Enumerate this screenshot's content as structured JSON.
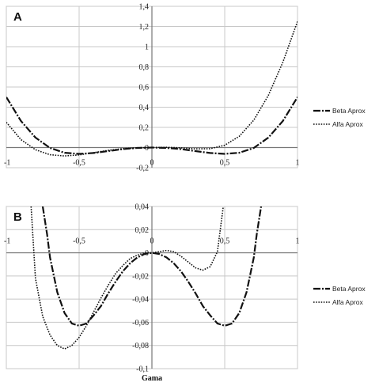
{
  "chart_data": [
    {
      "panel": "A",
      "type": "line",
      "xlim": [
        -1,
        1
      ],
      "ylim": [
        -0.2,
        1.4
      ],
      "grid": true,
      "legend_position": "right",
      "xticks": [
        "-1",
        "-0,5",
        "0",
        "0,5",
        "1"
      ],
      "yticks": [
        "-0,2",
        "0",
        "0,2",
        "0,4",
        "0,6",
        "0,8",
        "1",
        "1,2",
        "1,4"
      ],
      "series": [
        {
          "name": "Beta Aprox",
          "style": "dash-dot",
          "x": [
            -1,
            -0.9,
            -0.8,
            -0.7,
            -0.6,
            -0.5,
            -0.4,
            -0.3,
            -0.2,
            -0.1,
            0,
            0.1,
            0.2,
            0.3,
            0.4,
            0.5,
            0.6,
            0.7,
            0.8,
            0.9,
            1
          ],
          "y": [
            0.5,
            0.264,
            0.099,
            -0.004,
            -0.052,
            -0.063,
            -0.054,
            -0.035,
            -0.016,
            -0.004,
            0,
            -0.004,
            -0.016,
            -0.035,
            -0.054,
            -0.063,
            -0.052,
            -0.004,
            0.099,
            0.264,
            0.5
          ]
        },
        {
          "name": "Alfa Aprox",
          "style": "dotted",
          "x": [
            -1,
            -0.9,
            -0.8,
            -0.7,
            -0.6,
            -0.5,
            -0.4,
            -0.3,
            -0.2,
            -0.1,
            0,
            0.1,
            0.2,
            0.3,
            0.4,
            0.5,
            0.6,
            0.7,
            0.8,
            0.9,
            1
          ],
          "y": [
            0.25,
            0.079,
            -0.022,
            -0.071,
            -0.083,
            -0.073,
            -0.051,
            -0.028,
            -0.011,
            -0.002,
            0,
            0.002,
            -0.003,
            -0.013,
            -0.012,
            0.023,
            0.111,
            0.272,
            0.518,
            0.848,
            1.25
          ]
        }
      ]
    },
    {
      "panel": "B",
      "type": "line",
      "xlim": [
        -1,
        1
      ],
      "ylim": [
        -0.1,
        0.04
      ],
      "grid": true,
      "legend_position": "right",
      "xlabel": "Gama",
      "xticks": [
        "-1",
        "-0,5",
        "0",
        "0,5",
        "1"
      ],
      "yticks": [
        "-0,1",
        "-0,08",
        "-0,06",
        "-0,04",
        "-0,02",
        "0",
        "0,02",
        "0,04"
      ],
      "series": [
        {
          "name": "Beta Aprox",
          "style": "dash-dot",
          "x": [
            -0.75,
            -0.72,
            -0.7,
            -0.65,
            -0.6,
            -0.55,
            -0.5,
            -0.45,
            -0.4,
            -0.35,
            -0.3,
            -0.25,
            -0.2,
            -0.15,
            -0.1,
            -0.05,
            0,
            0.05,
            0.1,
            0.15,
            0.2,
            0.25,
            0.3,
            0.35,
            0.4,
            0.45,
            0.5,
            0.55,
            0.6,
            0.65,
            0.7,
            0.72,
            0.75
          ],
          "y": [
            0.04,
            0.016,
            -0.004,
            -0.034,
            -0.052,
            -0.061,
            -0.063,
            -0.061,
            -0.054,
            -0.046,
            -0.035,
            -0.025,
            -0.016,
            -0.009,
            -0.004,
            -0.001,
            0,
            -0.001,
            -0.004,
            -0.009,
            -0.016,
            -0.025,
            -0.035,
            -0.046,
            -0.054,
            -0.061,
            -0.063,
            -0.061,
            -0.052,
            -0.034,
            -0.004,
            0.016,
            0.04
          ]
        },
        {
          "name": "Alfa Aprox",
          "style": "dotted",
          "x": [
            -0.83,
            -0.8,
            -0.75,
            -0.7,
            -0.65,
            -0.6,
            -0.55,
            -0.5,
            -0.45,
            -0.4,
            -0.35,
            -0.3,
            -0.25,
            -0.2,
            -0.15,
            -0.1,
            -0.05,
            0,
            0.05,
            0.1,
            0.15,
            0.2,
            0.25,
            0.3,
            0.35,
            0.4,
            0.45,
            0.49
          ],
          "y": [
            0.04,
            -0.022,
            -0.055,
            -0.071,
            -0.08,
            -0.083,
            -0.08,
            -0.073,
            -0.063,
            -0.051,
            -0.039,
            -0.028,
            -0.018,
            -0.011,
            -0.005,
            -0.002,
            0,
            0,
            0.001,
            0.002,
            0.001,
            -0.003,
            -0.008,
            -0.013,
            -0.015,
            -0.012,
            0.001,
            0.04
          ]
        }
      ]
    }
  ]
}
